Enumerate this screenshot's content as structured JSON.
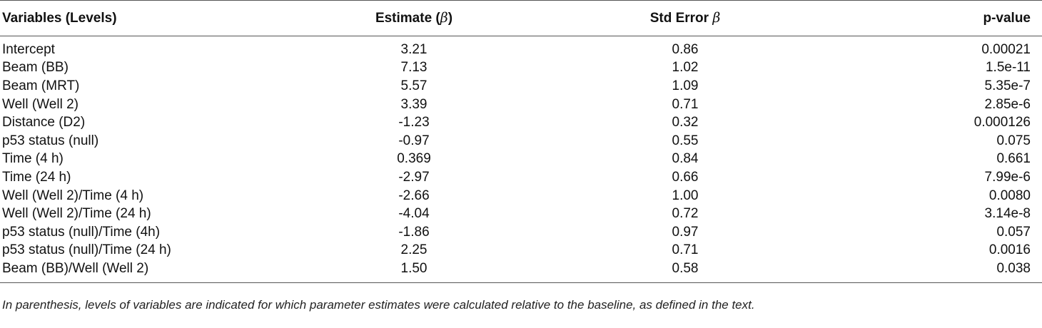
{
  "table": {
    "headers": {
      "variables": "Variables (Levels)",
      "estimate": "Estimate (",
      "estimate_symbol": "β",
      "estimate_close": ")",
      "std_error": "Std Error ",
      "std_error_symbol": "β",
      "p_value": "p-value"
    },
    "rows": [
      {
        "variable": "Intercept",
        "estimate": "3.21",
        "std_error": "0.86",
        "p_value": "0.00021"
      },
      {
        "variable": "Beam (BB)",
        "estimate": "7.13",
        "std_error": "1.02",
        "p_value": "1.5e-11"
      },
      {
        "variable": "Beam (MRT)",
        "estimate": "5.57",
        "std_error": "1.09",
        "p_value": "5.35e-7"
      },
      {
        "variable": "Well (Well 2)",
        "estimate": "3.39",
        "std_error": "0.71",
        "p_value": "2.85e-6"
      },
      {
        "variable": "Distance (D2)",
        "estimate": "-1.23",
        "std_error": "0.32",
        "p_value": "0.000126"
      },
      {
        "variable": "p53 status (null)",
        "estimate": "-0.97",
        "std_error": "0.55",
        "p_value": "0.075"
      },
      {
        "variable": "Time (4 h)",
        "estimate": "0.369",
        "std_error": "0.84",
        "p_value": "0.661"
      },
      {
        "variable": "Time (24 h)",
        "estimate": "-2.97",
        "std_error": "0.66",
        "p_value": "7.99e-6"
      },
      {
        "variable": "Well (Well 2)/Time (4 h)",
        "estimate": "-2.66",
        "std_error": "1.00",
        "p_value": "0.0080"
      },
      {
        "variable": "Well (Well 2)/Time (24 h)",
        "estimate": "-4.04",
        "std_error": "0.72",
        "p_value": "3.14e-8"
      },
      {
        "variable": "p53 status (null)/Time (4h)",
        "estimate": "-1.86",
        "std_error": "0.97",
        "p_value": "0.057"
      },
      {
        "variable": "p53 status (null)/Time (24 h)",
        "estimate": "2.25",
        "std_error": "0.71",
        "p_value": "0.0016"
      },
      {
        "variable": "Beam (BB)/Well (Well 2)",
        "estimate": "1.50",
        "std_error": "0.58",
        "p_value": "0.038"
      }
    ]
  },
  "footnote": "In parenthesis, levels of variables are indicated for which parameter estimates were calculated relative to the baseline, as defined in the text."
}
